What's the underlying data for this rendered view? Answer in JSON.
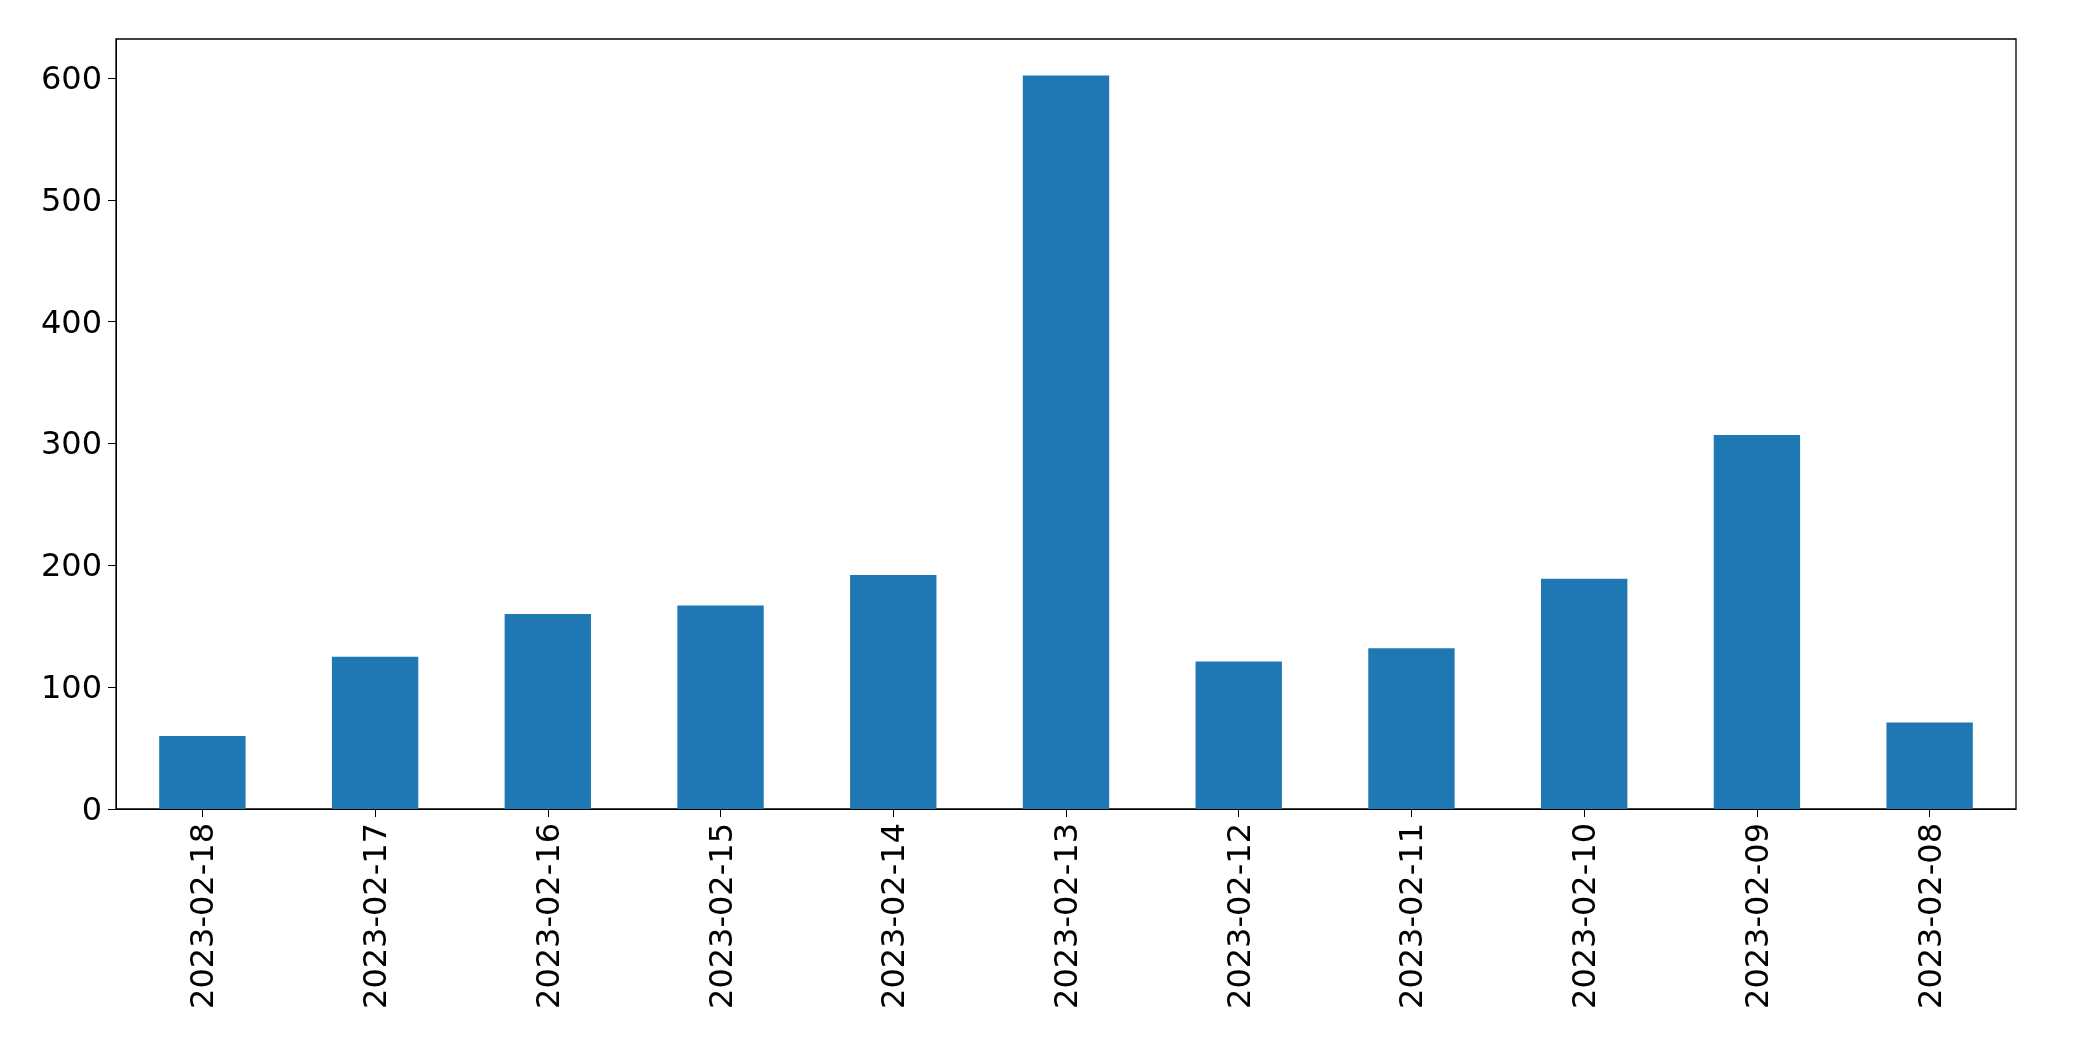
{
  "chart_data": {
    "type": "bar",
    "categories": [
      "2023-02-18",
      "2023-02-17",
      "2023-02-16",
      "2023-02-15",
      "2023-02-14",
      "2023-02-13",
      "2023-02-12",
      "2023-02-11",
      "2023-02-10",
      "2023-02-09",
      "2023-02-08"
    ],
    "values": [
      60,
      125,
      160,
      167,
      192,
      602,
      121,
      132,
      189,
      307,
      71
    ],
    "color": "#1f77b4",
    "ylim": [
      0,
      632
    ],
    "yticks": [
      0,
      100,
      200,
      300,
      400,
      500,
      600
    ],
    "grid": false
  }
}
